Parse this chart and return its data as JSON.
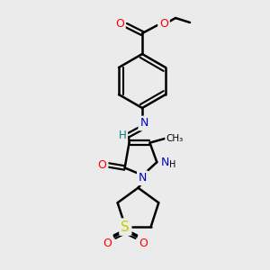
{
  "bg_color": "#ebebeb",
  "bond_color": "#000000",
  "bond_width": 1.8,
  "atom_colors": {
    "C": "#000000",
    "N": "#0000cc",
    "O": "#ff0000",
    "S": "#cccc00",
    "H": "#000000",
    "imine_C": "#008080"
  },
  "figsize": [
    3.0,
    3.0
  ],
  "dpi": 100
}
